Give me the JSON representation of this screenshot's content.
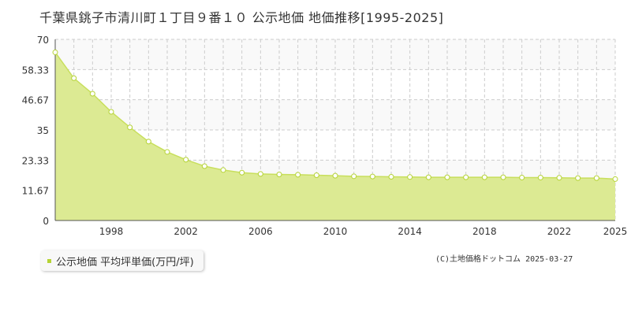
{
  "title": "千葉県銚子市清川町１丁目９番１０ 公示地価 地価推移[1995-2025]",
  "legend": {
    "label": "公示地価 平均坪単価(万円/坪)"
  },
  "copyright": "(C)土地価格ドットコム 2025-03-27",
  "colors": {
    "fill": "#dcea93",
    "line": "#c8df5c",
    "marker_stroke": "#b5d334",
    "marker_fill": "#ffffff",
    "band": "#f9f9f9",
    "grid": "#cccccc"
  },
  "chart_data": {
    "type": "area",
    "title": "千葉県銚子市清川町１丁目９番１０ 公示地価 地価推移[1995-2025]",
    "xlabel": "",
    "ylabel": "",
    "xlim": [
      1995,
      2025
    ],
    "ylim": [
      0,
      70
    ],
    "yticks": [
      "0",
      "11.67",
      "23.33",
      "35",
      "46.67",
      "58.33",
      "70"
    ],
    "xticks": [
      "1998",
      "2002",
      "2006",
      "2010",
      "2014",
      "2018",
      "2022",
      "2025"
    ],
    "grid": true,
    "series": [
      {
        "name": "公示地価 平均坪単価(万円/坪)",
        "x": [
          1995,
          1996,
          1997,
          1998,
          1999,
          2000,
          2001,
          2002,
          2003,
          2004,
          2005,
          2006,
          2007,
          2008,
          2009,
          2010,
          2011,
          2012,
          2013,
          2014,
          2015,
          2016,
          2017,
          2018,
          2019,
          2020,
          2021,
          2022,
          2023,
          2024,
          2025
        ],
        "values": [
          65.0,
          55.0,
          49.0,
          42.0,
          36.0,
          30.5,
          26.5,
          23.5,
          21.0,
          19.5,
          18.5,
          18.0,
          17.8,
          17.7,
          17.5,
          17.3,
          17.1,
          17.0,
          16.9,
          16.8,
          16.7,
          16.7,
          16.7,
          16.7,
          16.7,
          16.6,
          16.6,
          16.5,
          16.4,
          16.4,
          16.0
        ]
      }
    ]
  }
}
